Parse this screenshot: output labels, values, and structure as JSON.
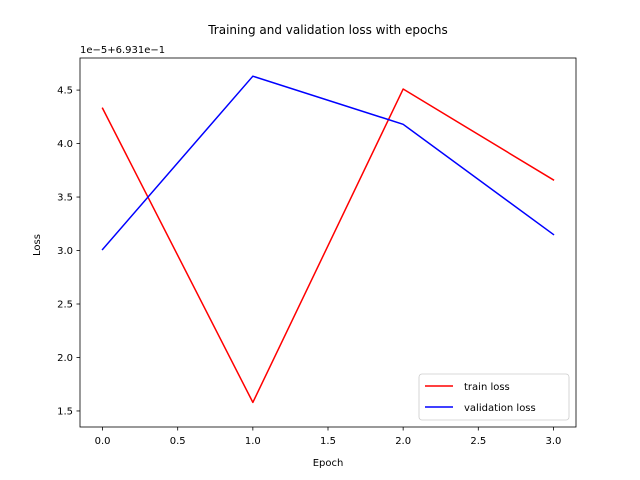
{
  "chart_data": {
    "type": "line",
    "title": "Training and validation loss with epochs",
    "xlabel": "Epoch",
    "ylabel": "Loss",
    "y_offset_text": "1e−5+6.931e−1",
    "xlim": [
      -0.15,
      3.15
    ],
    "ylim": [
      1.35,
      4.8
    ],
    "xticks": [
      0.0,
      0.5,
      1.0,
      1.5,
      2.0,
      2.5,
      3.0
    ],
    "xtick_labels": [
      "0.0",
      "0.5",
      "1.0",
      "1.5",
      "2.0",
      "2.5",
      "3.0"
    ],
    "yticks": [
      1.5,
      2.0,
      2.5,
      3.0,
      3.5,
      4.0,
      4.5
    ],
    "ytick_labels": [
      "1.5",
      "2.0",
      "2.5",
      "3.0",
      "3.5",
      "4.0",
      "4.5"
    ],
    "grid": false,
    "legend_position": "bottom-right",
    "x": [
      0,
      1,
      2,
      3
    ],
    "series": [
      {
        "name": "train loss",
        "color": "#ff0000",
        "values": [
          4.33,
          1.58,
          4.51,
          3.66
        ]
      },
      {
        "name": "validation loss",
        "color": "#0000ff",
        "values": [
          3.01,
          4.63,
          4.18,
          3.15
        ]
      }
    ]
  }
}
